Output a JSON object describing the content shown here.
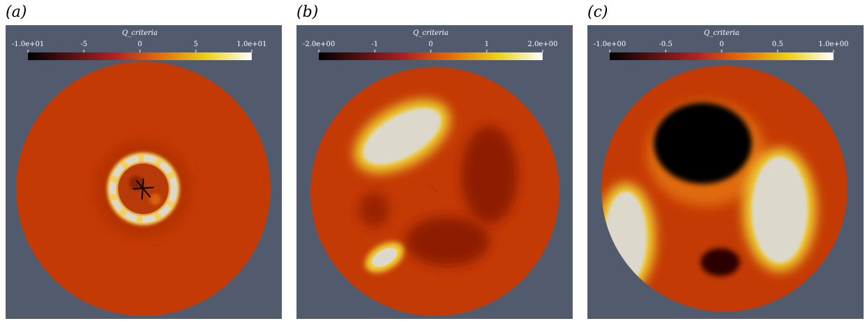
{
  "panels": [
    {
      "label": "(a)",
      "colorbar": {
        "title": "Q_criteria",
        "range": [
          -10,
          10
        ],
        "ticks": [
          {
            "value": -10,
            "label": "-1.0e+01"
          },
          -5,
          0,
          5,
          {
            "value": 10,
            "label": "1.0e+01"
          }
        ]
      }
    },
    {
      "label": "(b)",
      "colorbar": {
        "title": "Q_criteria",
        "range": [
          -2,
          2
        ],
        "ticks": [
          {
            "value": -2,
            "label": "-2.0e+00"
          },
          -1,
          0,
          1,
          {
            "value": 2,
            "label": "2.0e+00"
          }
        ]
      }
    },
    {
      "label": "(c)",
      "colorbar": {
        "title": "Q_criteria",
        "range": [
          -1,
          1
        ],
        "ticks": [
          {
            "value": -1,
            "label": "-1.0e+00"
          },
          -0.5,
          0,
          0.5,
          {
            "value": 1,
            "label": "1.0e+00"
          }
        ]
      }
    }
  ]
}
